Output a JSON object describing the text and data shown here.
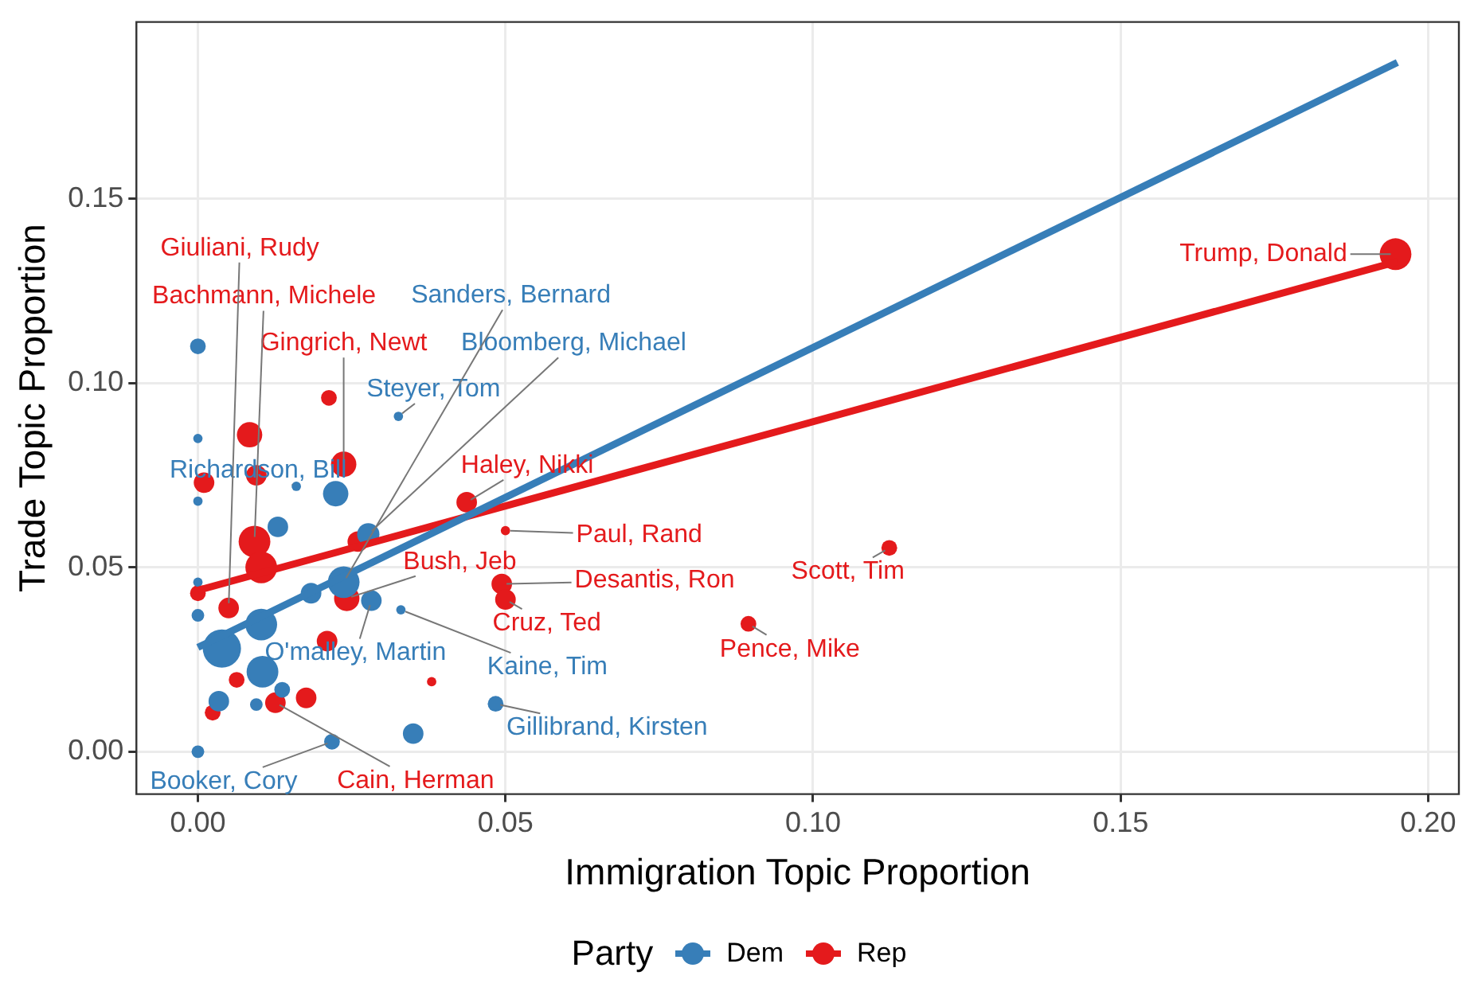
{
  "chart_data": {
    "type": "bubble",
    "xlabel": "Immigration Topic Proportion",
    "ylabel": "Trade Topic Proportion",
    "legend_title": "Party",
    "legend": "bottom",
    "grid": true,
    "xlim": [
      -0.01,
      0.205
    ],
    "ylim": [
      -0.0115,
      0.198
    ],
    "xticks": [
      {
        "value": 0,
        "label": "0.00"
      },
      {
        "value": 0.05,
        "label": "0.05"
      },
      {
        "value": 0.1,
        "label": "0.10"
      },
      {
        "value": 0.15,
        "label": "0.15"
      },
      {
        "value": 0.2,
        "label": "0.20"
      }
    ],
    "yticks": [
      {
        "value": 0,
        "label": "0.00"
      },
      {
        "value": 0.05,
        "label": "0.05"
      },
      {
        "value": 0.1,
        "label": "0.10"
      },
      {
        "value": 0.15,
        "label": "0.15"
      }
    ],
    "series": [
      {
        "name": "Dem",
        "color": "#377eb8",
        "x": [
          0,
          0.0326,
          0,
          0.016,
          0,
          0.0224,
          0.013,
          0.0277,
          0,
          0.0184,
          0.0237,
          0.0282,
          0.033,
          0,
          0.0103,
          0.0039,
          0.0105,
          0.0137,
          0.0034,
          0.0095,
          0.0218,
          0.035,
          0,
          0.0484
        ],
        "values": [
          0.11,
          0.091,
          0.085,
          0.072,
          0.068,
          0.07,
          0.061,
          0.059,
          0.046,
          0.043,
          0.046,
          0.041,
          0.0385,
          0.037,
          0.0345,
          0.028,
          0.0217,
          0.0168,
          0.0137,
          0.0128,
          0.0027,
          0.0049,
          0,
          0.013
        ],
        "sizes": [
          0.17,
          0.06,
          0.06,
          0.06,
          0.06,
          0.44,
          0.29,
          0.34,
          0.06,
          0.29,
          0.69,
          0.29,
          0.06,
          0.11,
          0.69,
          1,
          0.69,
          0.17,
          0.29,
          0.11,
          0.17,
          0.29,
          0.11,
          0.17
        ]
      },
      {
        "name": "Rep",
        "color": "#e41a1c",
        "x": [
          0.0213,
          0.0084,
          0.0237,
          0.0095,
          0.001,
          0.0092,
          0.026,
          0.0103,
          0,
          0.0242,
          0.005,
          0.021,
          0.0063,
          0.0176,
          0.0126,
          0.0024,
          0.038,
          0.0437,
          0.05,
          0.0494,
          0.05,
          0.0895,
          0.1124,
          0.1947
        ],
        "values": [
          0.096,
          0.086,
          0.078,
          0.075,
          0.073,
          0.057,
          0.057,
          0.05,
          0.043,
          0.0416,
          0.039,
          0.03,
          0.0195,
          0.0146,
          0.0133,
          0.0106,
          0.019,
          0.0677,
          0.06,
          0.0455,
          0.0413,
          0.0347,
          0.0553,
          0.135
        ],
        "sizes": [
          0.17,
          0.44,
          0.44,
          0.29,
          0.29,
          0.69,
          0.29,
          0.69,
          0.17,
          0.44,
          0.29,
          0.29,
          0.17,
          0.29,
          0.29,
          0.17,
          0.06,
          0.29,
          0.06,
          0.29,
          0.29,
          0.17,
          0.17,
          0.69
        ]
      },
      {
        "type": "line",
        "color": "#377eb8",
        "x": [
          0,
          0.195
        ],
        "values": [
          0.0283,
          0.187
        ]
      },
      {
        "type": "line",
        "color": "#e41a1c",
        "x": [
          0,
          0.195
        ],
        "values": [
          0.0438,
          0.133
        ]
      }
    ],
    "annotations": [
      {
        "text": "Steyer, Tom",
        "x": 0.0326,
        "y": 0.091
      },
      {
        "text": "Richardson, Bill",
        "x": 0.016,
        "y": 0.072
      },
      {
        "text": "Bloomberg, Michael",
        "x": 0.0277,
        "y": 0.059
      },
      {
        "text": "Sanders, Bernard",
        "x": 0.0237,
        "y": 0.046
      },
      {
        "text": "O'malley, Martin",
        "x": 0.0282,
        "y": 0.041
      },
      {
        "text": "Kaine, Tim",
        "x": 0.033,
        "y": 0.0385
      },
      {
        "text": "Gillibrand, Kirsten",
        "x": 0.0484,
        "y": 0.013
      },
      {
        "text": "Booker, Cory",
        "x": 0.0218,
        "y": 0.0027
      },
      {
        "text": "Gingrich, Newt",
        "x": 0.0237,
        "y": 0.078
      },
      {
        "text": "Haley, Nikki",
        "x": 0.0437,
        "y": 0.0677
      },
      {
        "text": "Paul, Rand",
        "x": 0.05,
        "y": 0.06
      },
      {
        "text": "Bachmann, Michele",
        "x": 0.0092,
        "y": 0.057
      },
      {
        "text": "Bush, Jeb",
        "x": 0.0242,
        "y": 0.0416
      },
      {
        "text": "Desantis, Ron",
        "x": 0.0494,
        "y": 0.0455
      },
      {
        "text": "Cruz, Ted",
        "x": 0.05,
        "y": 0.0413
      },
      {
        "text": "Giuliani, Rudy",
        "x": 0.005,
        "y": 0.039
      },
      {
        "text": "Cain, Herman",
        "x": 0.0126,
        "y": 0.0133
      },
      {
        "text": "Pence, Mike",
        "x": 0.0895,
        "y": 0.0347
      },
      {
        "text": "Scott, Tim",
        "x": 0.1124,
        "y": 0.0553
      },
      {
        "text": "Trump, Donald",
        "x": 0.1947,
        "y": 0.135
      }
    ]
  }
}
